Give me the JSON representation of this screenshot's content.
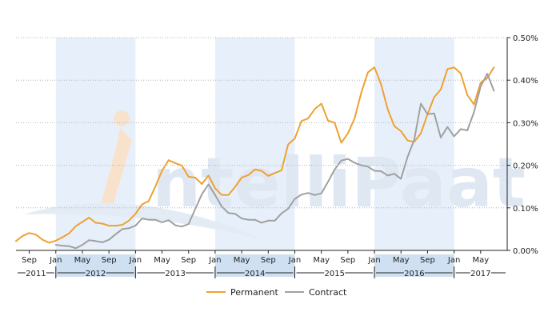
{
  "chart_data": {
    "type": "line",
    "title": "",
    "xlabel": "",
    "ylabel": "",
    "x_start": "2011-07",
    "x_end": "2017-09",
    "ylim": [
      0,
      0.5
    ],
    "y_ticks": [
      {
        "value": 0.0,
        "label": "0.00%"
      },
      {
        "value": 0.1,
        "label": "0.10%"
      },
      {
        "value": 0.2,
        "label": "0.20%"
      },
      {
        "value": 0.3,
        "label": "0.30%"
      },
      {
        "value": 0.4,
        "label": "0.40%"
      },
      {
        "value": 0.5,
        "label": "0.50%"
      }
    ],
    "month_ticks": [
      {
        "date": "2011-09",
        "label": "Sep"
      },
      {
        "date": "2012-01",
        "label": "Jan"
      },
      {
        "date": "2012-05",
        "label": "May"
      },
      {
        "date": "2012-09",
        "label": "Sep"
      },
      {
        "date": "2013-01",
        "label": "Jan"
      },
      {
        "date": "2013-05",
        "label": "May"
      },
      {
        "date": "2013-09",
        "label": "Sep"
      },
      {
        "date": "2014-01",
        "label": "Jan"
      },
      {
        "date": "2014-05",
        "label": "May"
      },
      {
        "date": "2014-09",
        "label": "Sep"
      },
      {
        "date": "2015-01",
        "label": "Jan"
      },
      {
        "date": "2015-05",
        "label": "May"
      },
      {
        "date": "2015-09",
        "label": "Sep"
      },
      {
        "date": "2016-01",
        "label": "Jan"
      },
      {
        "date": "2016-05",
        "label": "May"
      },
      {
        "date": "2016-09",
        "label": "Sep"
      },
      {
        "date": "2017-01",
        "label": "Jan"
      },
      {
        "date": "2017-05",
        "label": "May"
      }
    ],
    "year_labels": [
      {
        "label": "2011",
        "from": "2011-07",
        "to": "2012-01"
      },
      {
        "label": "2012",
        "from": "2012-01",
        "to": "2013-01"
      },
      {
        "label": "2013",
        "from": "2013-01",
        "to": "2014-01"
      },
      {
        "label": "2014",
        "from": "2014-01",
        "to": "2015-01"
      },
      {
        "label": "2015",
        "from": "2015-01",
        "to": "2016-01"
      },
      {
        "label": "2016",
        "from": "2016-01",
        "to": "2017-01"
      },
      {
        "label": "2017",
        "from": "2017-01",
        "to": "2017-09"
      }
    ],
    "year_shading": [
      {
        "from": "2012-01",
        "to": "2013-01"
      },
      {
        "from": "2014-01",
        "to": "2015-01"
      },
      {
        "from": "2016-01",
        "to": "2017-01"
      }
    ],
    "grid": true,
    "legend": "bottom-center",
    "series": [
      {
        "name": "Permanent",
        "color": "#f0a030",
        "points": [
          [
            "2011-07",
            0.022
          ],
          [
            "2011-08",
            0.034
          ],
          [
            "2011-09",
            0.041
          ],
          [
            "2011-10",
            0.037
          ],
          [
            "2011-11",
            0.025
          ],
          [
            "2011-12",
            0.018
          ],
          [
            "2012-01",
            0.023
          ],
          [
            "2012-02",
            0.031
          ],
          [
            "2012-03",
            0.04
          ],
          [
            "2012-04",
            0.057
          ],
          [
            "2012-05",
            0.067
          ],
          [
            "2012-06",
            0.077
          ],
          [
            "2012-07",
            0.065
          ],
          [
            "2012-08",
            0.063
          ],
          [
            "2012-09",
            0.058
          ],
          [
            "2012-10",
            0.058
          ],
          [
            "2012-11",
            0.06
          ],
          [
            "2012-12",
            0.07
          ],
          [
            "2013-01",
            0.086
          ],
          [
            "2013-02",
            0.108
          ],
          [
            "2013-03",
            0.116
          ],
          [
            "2013-04",
            0.15
          ],
          [
            "2013-05",
            0.187
          ],
          [
            "2013-06",
            0.212
          ],
          [
            "2013-07",
            0.205
          ],
          [
            "2013-08",
            0.199
          ],
          [
            "2013-09",
            0.173
          ],
          [
            "2013-10",
            0.171
          ],
          [
            "2013-11",
            0.156
          ],
          [
            "2013-12",
            0.176
          ],
          [
            "2014-01",
            0.146
          ],
          [
            "2014-02",
            0.13
          ],
          [
            "2014-03",
            0.13
          ],
          [
            "2014-04",
            0.149
          ],
          [
            "2014-05",
            0.171
          ],
          [
            "2014-06",
            0.177
          ],
          [
            "2014-07",
            0.19
          ],
          [
            "2014-08",
            0.187
          ],
          [
            "2014-09",
            0.175
          ],
          [
            "2014-10",
            0.182
          ],
          [
            "2014-11",
            0.188
          ],
          [
            "2014-12",
            0.249
          ],
          [
            "2015-01",
            0.263
          ],
          [
            "2015-02",
            0.304
          ],
          [
            "2015-03",
            0.31
          ],
          [
            "2015-04",
            0.332
          ],
          [
            "2015-05",
            0.345
          ],
          [
            "2015-06",
            0.305
          ],
          [
            "2015-07",
            0.3
          ],
          [
            "2015-08",
            0.253
          ],
          [
            "2015-09",
            0.275
          ],
          [
            "2015-10",
            0.31
          ],
          [
            "2015-11",
            0.37
          ],
          [
            "2015-12",
            0.418
          ],
          [
            "2016-01",
            0.43
          ],
          [
            "2016-02",
            0.39
          ],
          [
            "2016-03",
            0.332
          ],
          [
            "2016-04",
            0.292
          ],
          [
            "2016-05",
            0.28
          ],
          [
            "2016-06",
            0.258
          ],
          [
            "2016-07",
            0.255
          ],
          [
            "2016-08",
            0.275
          ],
          [
            "2016-09",
            0.32
          ],
          [
            "2016-10",
            0.36
          ],
          [
            "2016-11",
            0.378
          ],
          [
            "2016-12",
            0.426
          ],
          [
            "2017-01",
            0.43
          ],
          [
            "2017-02",
            0.416
          ],
          [
            "2017-03",
            0.365
          ],
          [
            "2017-04",
            0.343
          ],
          [
            "2017-05",
            0.394
          ],
          [
            "2017-06",
            0.405
          ],
          [
            "2017-07",
            0.43
          ]
        ]
      },
      {
        "name": "Contract",
        "color": "#a0a0a0",
        "points": [
          [
            "2012-01",
            0.013
          ],
          [
            "2012-02",
            0.011
          ],
          [
            "2012-03",
            0.01
          ],
          [
            "2012-04",
            0.005
          ],
          [
            "2012-05",
            0.013
          ],
          [
            "2012-06",
            0.024
          ],
          [
            "2012-07",
            0.022
          ],
          [
            "2012-08",
            0.019
          ],
          [
            "2012-09",
            0.025
          ],
          [
            "2012-10",
            0.038
          ],
          [
            "2012-11",
            0.05
          ],
          [
            "2012-12",
            0.052
          ],
          [
            "2013-01",
            0.058
          ],
          [
            "2013-02",
            0.075
          ],
          [
            "2013-03",
            0.072
          ],
          [
            "2013-04",
            0.072
          ],
          [
            "2013-05",
            0.066
          ],
          [
            "2013-06",
            0.071
          ],
          [
            "2013-07",
            0.059
          ],
          [
            "2013-08",
            0.056
          ],
          [
            "2013-09",
            0.062
          ],
          [
            "2013-10",
            0.097
          ],
          [
            "2013-11",
            0.132
          ],
          [
            "2013-12",
            0.155
          ],
          [
            "2014-01",
            0.13
          ],
          [
            "2014-02",
            0.103
          ],
          [
            "2014-03",
            0.088
          ],
          [
            "2014-04",
            0.086
          ],
          [
            "2014-05",
            0.075
          ],
          [
            "2014-06",
            0.072
          ],
          [
            "2014-07",
            0.072
          ],
          [
            "2014-08",
            0.065
          ],
          [
            "2014-09",
            0.07
          ],
          [
            "2014-10",
            0.07
          ],
          [
            "2014-11",
            0.087
          ],
          [
            "2014-12",
            0.098
          ],
          [
            "2015-01",
            0.121
          ],
          [
            "2015-02",
            0.131
          ],
          [
            "2015-03",
            0.135
          ],
          [
            "2015-04",
            0.13
          ],
          [
            "2015-05",
            0.134
          ],
          [
            "2015-06",
            0.161
          ],
          [
            "2015-07",
            0.19
          ],
          [
            "2015-08",
            0.211
          ],
          [
            "2015-09",
            0.215
          ],
          [
            "2015-10",
            0.206
          ],
          [
            "2015-11",
            0.2
          ],
          [
            "2015-12",
            0.197
          ],
          [
            "2016-01",
            0.187
          ],
          [
            "2016-02",
            0.186
          ],
          [
            "2016-03",
            0.176
          ],
          [
            "2016-04",
            0.18
          ],
          [
            "2016-05",
            0.168
          ],
          [
            "2016-06",
            0.22
          ],
          [
            "2016-07",
            0.26
          ],
          [
            "2016-08",
            0.345
          ],
          [
            "2016-09",
            0.32
          ],
          [
            "2016-10",
            0.322
          ],
          [
            "2016-11",
            0.265
          ],
          [
            "2016-12",
            0.29
          ],
          [
            "2017-01",
            0.268
          ],
          [
            "2017-02",
            0.285
          ],
          [
            "2017-03",
            0.282
          ],
          [
            "2017-04",
            0.325
          ],
          [
            "2017-05",
            0.385
          ],
          [
            "2017-06",
            0.415
          ],
          [
            "2017-07",
            0.375
          ]
        ]
      }
    ]
  },
  "watermark": {
    "text": "ntelliPaat"
  },
  "colors": {
    "axis": "#222222",
    "grid": "#b4b4b4",
    "shade": "#e7f0fa",
    "year_band": "#cfe0f2",
    "watermark_blue": "#e3ecf5",
    "watermark_orange": "#fbe7d4"
  }
}
